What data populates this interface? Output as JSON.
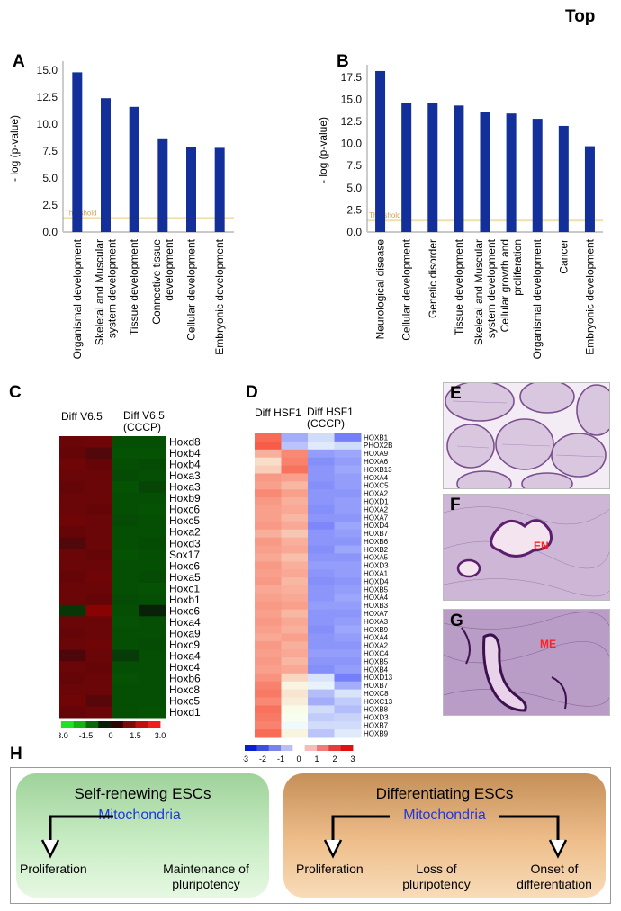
{
  "figure": {
    "top_label": "Top",
    "panel_labels": {
      "A": "A",
      "B": "B",
      "C": "C",
      "D": "D",
      "E": "E",
      "F": "F",
      "G": "G",
      "H": "H"
    }
  },
  "chart_data": [
    {
      "type": "bar",
      "panel": "A",
      "ylabel": "- log (p-value)",
      "ylim": [
        0,
        15.5
      ],
      "yticks": [
        "0.0",
        "2.5",
        "5.0",
        "7.5",
        "10.0",
        "12.5",
        "15.0"
      ],
      "threshold_label": "Threshold",
      "threshold": 1.3,
      "categories": [
        "Organismal development",
        "Skeletal and Muscular system development",
        "Tissue development",
        "Connective tissue development",
        "Cellular development",
        "Embryonic development"
      ],
      "category_lines": [
        [
          "Organismal development"
        ],
        [
          "Skeletal and Muscular",
          "system development"
        ],
        [
          "Tissue development"
        ],
        [
          "Connective tissue",
          "development"
        ],
        [
          "Cellular development"
        ],
        [
          "Embryonic development"
        ]
      ],
      "values": [
        14.8,
        12.4,
        11.6,
        8.6,
        7.9,
        7.8
      ],
      "color": "#13309a"
    },
    {
      "type": "bar",
      "panel": "B",
      "ylabel": "- log (p-value)",
      "ylim": [
        0,
        18.5
      ],
      "yticks": [
        "0.0",
        "2.5",
        "5.0",
        "7.5",
        "10.0",
        "12.5",
        "15.0",
        "17.5"
      ],
      "threshold_label": "Threshold",
      "threshold": 1.3,
      "categories": [
        "Neurological disease",
        "Cellular development",
        "Genetic disorder",
        "Tissue development",
        "Skeletal and Muscular system development",
        "Cellular growth and proliferation",
        "Organismal development",
        "Cancer",
        "Embryonic development"
      ],
      "category_lines": [
        [
          "Neurological disease"
        ],
        [
          "Cellular development"
        ],
        [
          "Genetic disorder"
        ],
        [
          "Tissue development"
        ],
        [
          "Skeletal and Muscular",
          "system development"
        ],
        [
          "Cellular growth and",
          "proliferation"
        ],
        [
          "Organismal development"
        ],
        [
          "Cancer"
        ],
        [
          "Embryonic development"
        ]
      ],
      "values": [
        18.2,
        14.6,
        14.6,
        14.3,
        13.6,
        13.4,
        12.8,
        12.0,
        9.7
      ],
      "color": "#13309a"
    },
    {
      "type": "heatmap",
      "panel": "C",
      "columns": [
        "Diff V6.5",
        "Diff V6.5\n(CCCP)"
      ],
      "column_lines": [
        [
          "Diff V6.5"
        ],
        [
          "Diff V6.5",
          "(CCCP)"
        ]
      ],
      "rows": [
        "Hoxd8",
        "Hoxb4",
        "Hoxb4",
        "Hoxa3",
        "Hoxa3",
        "Hoxb9",
        "Hoxc6",
        "Hoxc5",
        "Hoxa2",
        "Hoxd3",
        "Sox17",
        "Hoxc6",
        "Hoxa5",
        "Hoxc1",
        "Hoxb1",
        "Hoxc6",
        "Hoxa4",
        "Hoxa9",
        "Hoxc9",
        "Hoxa4",
        "Hoxc4",
        "Hoxb6",
        "Hoxc8",
        "Hoxc5",
        "Hoxd1"
      ],
      "values": [
        [
          1.5,
          1.6,
          -1.5,
          -1.5
        ],
        [
          1.4,
          1.0,
          -1.6,
          -1.6
        ],
        [
          1.6,
          1.4,
          -1.5,
          -1.4
        ],
        [
          1.5,
          1.5,
          -1.4,
          -1.5
        ],
        [
          1.4,
          1.5,
          -1.6,
          -1.2
        ],
        [
          1.5,
          1.5,
          -1.5,
          -1.5
        ],
        [
          1.5,
          1.4,
          -1.5,
          -1.6
        ],
        [
          1.6,
          1.5,
          -1.4,
          -1.5
        ],
        [
          1.4,
          1.5,
          -1.5,
          -1.5
        ],
        [
          1.0,
          1.5,
          -1.5,
          -1.4
        ],
        [
          1.5,
          1.4,
          -1.6,
          -1.5
        ],
        [
          1.5,
          1.5,
          -1.5,
          -1.5
        ],
        [
          1.4,
          1.6,
          -1.5,
          -1.4
        ],
        [
          1.5,
          1.5,
          -1.5,
          -1.6
        ],
        [
          1.5,
          1.4,
          -1.4,
          -1.5
        ],
        [
          -0.8,
          2.2,
          -1.5,
          -0.2
        ],
        [
          1.5,
          1.5,
          -1.6,
          -1.5
        ],
        [
          1.4,
          1.5,
          -1.5,
          -1.5
        ],
        [
          1.5,
          1.6,
          -1.5,
          -1.4
        ],
        [
          0.9,
          1.5,
          -0.9,
          -1.5
        ],
        [
          1.5,
          1.4,
          -1.5,
          -1.5
        ],
        [
          1.4,
          1.5,
          -1.6,
          -1.5
        ],
        [
          1.5,
          1.5,
          -1.5,
          -1.5
        ],
        [
          1.6,
          1.1,
          -1.5,
          -1.5
        ],
        [
          1.4,
          1.5,
          -1.5,
          -1.6
        ]
      ],
      "scale_ticks": [
        "-3.0",
        "-1.5",
        "0",
        "1.5",
        "3.0"
      ]
    },
    {
      "type": "heatmap",
      "panel": "D",
      "columns": [
        "Diff HSF1",
        "Diff HSF1\n(CCCP)"
      ],
      "column_lines": [
        [
          "Diff HSF1"
        ],
        [
          "Diff HSF1",
          "(CCCP)"
        ]
      ],
      "rows": [
        "HOXB1",
        "PHOX2B",
        "HOXA9",
        "HOXA6",
        "HOXB13",
        "HOXA4",
        "HOXC5",
        "HOXA2",
        "HOXD1",
        "HOXA2",
        "HOXA7",
        "HOXD4",
        "HOXB7",
        "HOXB6",
        "HOXB2",
        "HOXA5",
        "HOXD3",
        "HOXA1",
        "HOXD4",
        "HOXB5",
        "HOXA4",
        "HOXB3",
        "HOXA7",
        "HOXA3",
        "HOXB9",
        "HOXA4",
        "HOXA2",
        "HOXC4",
        "HOXB5",
        "HOXB4",
        "HOXD13",
        "HOXB7",
        "HOXC8",
        "HOXC13",
        "HOXB8",
        "HOXD3",
        "HOXB7",
        "HOXB9"
      ],
      "values": [
        [
          2.2,
          -1.2,
          -0.6,
          -1.8
        ],
        [
          2.4,
          -0.9,
          -0.4,
          -0.6
        ],
        [
          1.3,
          1.8,
          -1.4,
          -1.3
        ],
        [
          0.7,
          1.9,
          -1.6,
          -1.4
        ],
        [
          0.9,
          2.1,
          -1.5,
          -1.3
        ],
        [
          1.6,
          1.5,
          -1.5,
          -1.4
        ],
        [
          1.5,
          1.2,
          -1.6,
          -1.4
        ],
        [
          1.8,
          1.5,
          -1.5,
          -1.5
        ],
        [
          1.6,
          1.3,
          -1.5,
          -1.4
        ],
        [
          1.5,
          1.4,
          -1.6,
          -1.4
        ],
        [
          1.5,
          1.2,
          -1.5,
          -1.5
        ],
        [
          1.6,
          1.4,
          -1.7,
          -1.3
        ],
        [
          1.3,
          1.0,
          -1.5,
          -1.4
        ],
        [
          1.6,
          1.3,
          -1.5,
          -1.5
        ],
        [
          1.5,
          1.4,
          -1.6,
          -1.3
        ],
        [
          1.4,
          1.1,
          -1.5,
          -1.5
        ],
        [
          1.6,
          1.3,
          -1.4,
          -1.4
        ],
        [
          1.5,
          1.4,
          -1.5,
          -1.4
        ],
        [
          1.6,
          1.2,
          -1.6,
          -1.5
        ],
        [
          1.4,
          1.3,
          -1.5,
          -1.4
        ],
        [
          1.5,
          1.4,
          -1.5,
          -1.3
        ],
        [
          1.6,
          1.5,
          -1.4,
          -1.4
        ],
        [
          1.5,
          1.2,
          -1.5,
          -1.5
        ],
        [
          1.6,
          1.4,
          -1.5,
          -1.4
        ],
        [
          1.5,
          1.3,
          -1.6,
          -1.3
        ],
        [
          1.4,
          1.5,
          -1.5,
          -1.4
        ],
        [
          1.6,
          1.3,
          -1.5,
          -1.5
        ],
        [
          1.5,
          1.4,
          -1.4,
          -1.4
        ],
        [
          1.6,
          1.2,
          -1.5,
          -1.5
        ],
        [
          1.5,
          1.4,
          -1.6,
          -1.4
        ],
        [
          1.7,
          0.8,
          -0.5,
          -1.8
        ],
        [
          1.9,
          0.4,
          -0.3,
          -1.2
        ],
        [
          2.0,
          0.6,
          -1.0,
          -0.5
        ],
        [
          1.8,
          0.5,
          -1.2,
          -0.8
        ],
        [
          2.1,
          0.3,
          -0.6,
          -1.0
        ],
        [
          2.0,
          0.2,
          -0.8,
          -0.7
        ],
        [
          1.9,
          -0.2,
          -0.6,
          -0.6
        ],
        [
          2.2,
          0.4,
          -0.9,
          -0.4
        ]
      ],
      "scale_ticks": [
        "-3",
        "-2",
        "-1",
        "0",
        "1",
        "2",
        "3"
      ]
    }
  ],
  "histology": {
    "E": {
      "label": "E"
    },
    "F": {
      "label": "F",
      "annotation": "EN"
    },
    "G": {
      "label": "G",
      "annotation": "ME"
    }
  },
  "schematic": {
    "left": {
      "title": "Self-renewing ESCs",
      "center": "Mitochondria",
      "outcome1": "Proliferation",
      "outcome2_lines": [
        "Maintenance of",
        "pluripotency"
      ]
    },
    "right": {
      "title": "Differentiating ESCs",
      "center": "Mitochondria",
      "outcome1": "Proliferation",
      "outcome2_lines": [
        "Loss of",
        "pluripotency"
      ],
      "outcome3_lines": [
        "Onset of",
        "differentiation"
      ]
    }
  }
}
